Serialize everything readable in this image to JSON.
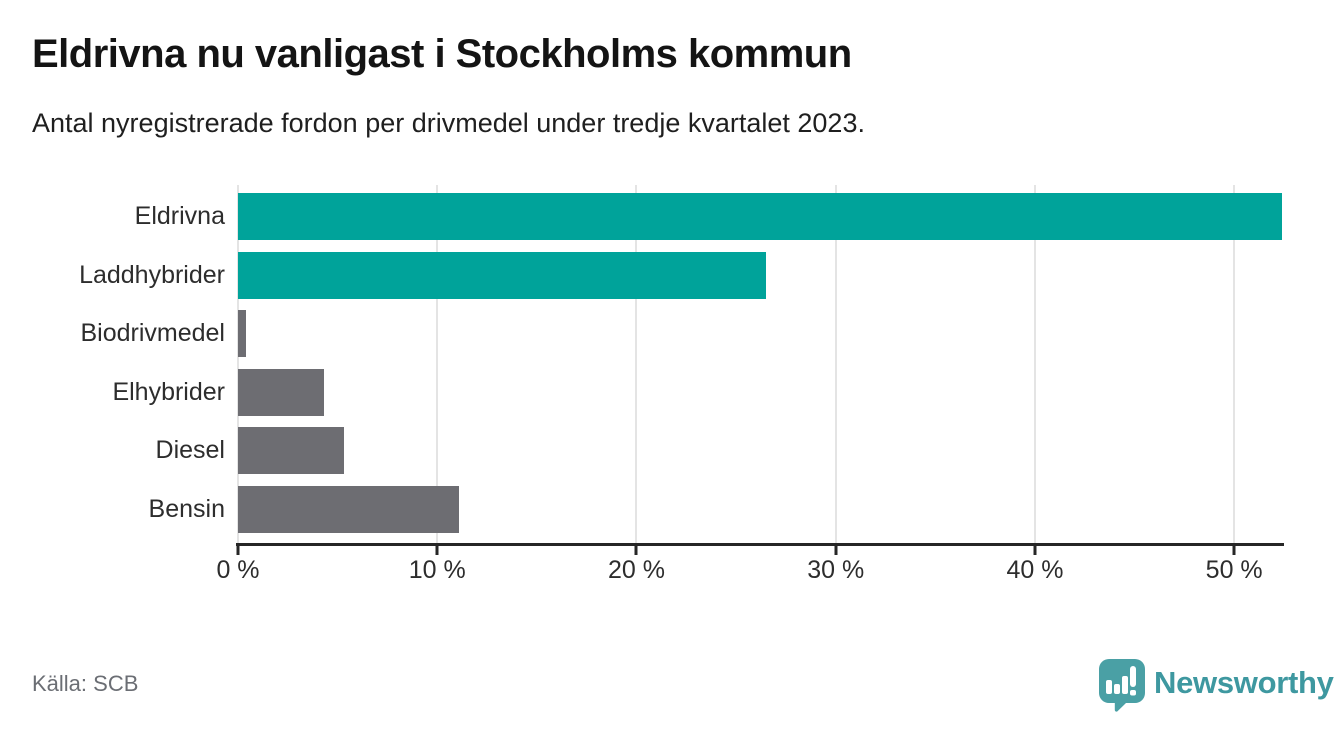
{
  "title": "Eldrivna nu vanligast i Stockholms kommun",
  "subtitle": "Antal nyregistrerade fordon per drivmedel under tredje kvartalet 2023.",
  "source": "Källa: SCB",
  "brand": {
    "name": "Newsworthy",
    "badge_color": "#4aa0a5",
    "text_color": "#3e98a0"
  },
  "colors": {
    "teal": "#00a39a",
    "gray": "#6d6d72",
    "grid": "#e4e4e4",
    "axis": "#262626"
  },
  "chart_data": {
    "type": "bar",
    "orientation": "horizontal",
    "title": "Eldrivna nu vanligast i Stockholms kommun",
    "subtitle": "Antal nyregistrerade fordon per drivmedel under tredje kvartalet 2023.",
    "categories": [
      "Eldrivna",
      "Laddhybrider",
      "Biodrivmedel",
      "Elhybrider",
      "Diesel",
      "Bensin"
    ],
    "values": [
      52.4,
      26.5,
      0.4,
      4.3,
      5.3,
      11.1
    ],
    "unit": "%",
    "bar_color_keys": [
      "teal",
      "teal",
      "gray",
      "gray",
      "gray",
      "gray"
    ],
    "x_tick_labels": [
      "0 %",
      "10 %",
      "20 %",
      "30 %",
      "40 %",
      "50 %"
    ],
    "x_tick_values": [
      0,
      10,
      20,
      30,
      40,
      50
    ],
    "xlim": [
      0,
      52.4
    ],
    "grid": true,
    "legend": false,
    "xlabel": "",
    "ylabel": ""
  }
}
